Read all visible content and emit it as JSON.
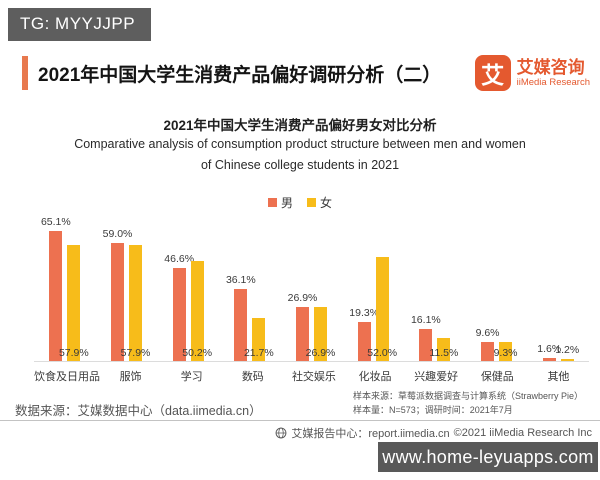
{
  "watermark_top": {
    "label": "TG: MYYJJPP"
  },
  "header": {
    "title": "2021年中国大学生消费产品偏好调研分析（二）",
    "logo": {
      "glyph": "艾",
      "name_cn": "艾媒咨询",
      "name_en": "iiMedia Research"
    }
  },
  "chart_data": {
    "type": "bar",
    "title": "2021年中国大学生消费产品偏好男女对比分析",
    "subtitle_en_line1": "Comparative analysis of consumption product structure between men and women",
    "subtitle_en_line2": "of Chinese college students in 2021",
    "categories": [
      "饮食及日用品",
      "服饰",
      "学习",
      "数码",
      "社交娱乐",
      "化妆品",
      "兴趣爱好",
      "保健品",
      "其他"
    ],
    "series": [
      {
        "name": "男",
        "color": "#ed7150",
        "values": [
          65.1,
          59.0,
          46.6,
          36.1,
          26.9,
          19.3,
          16.1,
          9.6,
          1.6
        ]
      },
      {
        "name": "女",
        "color": "#f7bc1a",
        "values": [
          57.9,
          57.9,
          50.2,
          21.7,
          26.9,
          52.0,
          11.5,
          9.3,
          1.2
        ]
      }
    ],
    "value_suffix": "%",
    "ylim": [
      0,
      70
    ],
    "grid": false,
    "legend_position": "top-center"
  },
  "sources": {
    "data_source": "数据来源：艾媒数据中心（data.iimedia.cn）",
    "sample_source": "样本来源：草莓派数据调查与计算系统（Strawberry Pie）",
    "sample_size": "样本量：N=573；调研时间：2021年7月"
  },
  "footer": {
    "report_center": "艾媒报告中心：report.iimedia.cn",
    "copyright": "©2021  iiMedia Research  Inc"
  },
  "watermark_bottom": {
    "label": "www.home-leyuapps.com"
  },
  "colors": {
    "male": "#ed7150",
    "female": "#f7bc1a",
    "accent": "#e8794e",
    "dark_box": "#5e5e5e"
  }
}
